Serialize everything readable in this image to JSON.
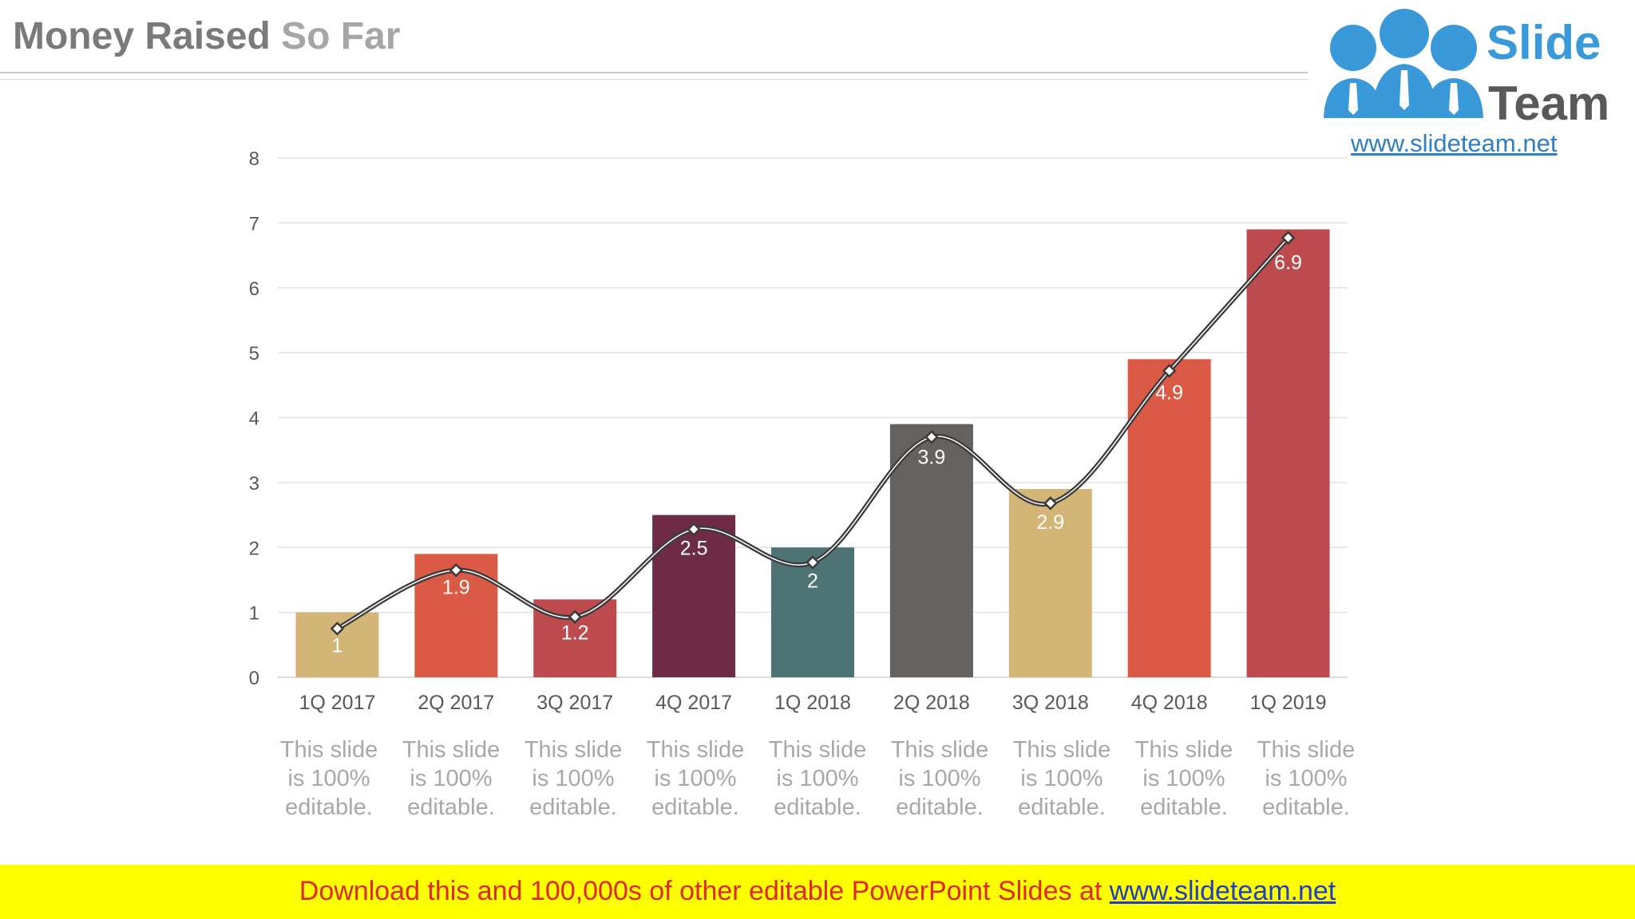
{
  "header": {
    "title_main": "Money Raised",
    "title_accent": "So Far"
  },
  "logo": {
    "word1": "Slide",
    "word2": "Team",
    "url": "www.slideteam.net"
  },
  "chart_data": {
    "type": "bar",
    "categories": [
      "1Q 2017",
      "2Q 2017",
      "3Q 2017",
      "4Q 2017",
      "1Q 2018",
      "2Q 2018",
      "3Q 2018",
      "4Q 2018",
      "1Q 2019"
    ],
    "values": [
      1,
      1.9,
      1.2,
      2.5,
      2,
      3.9,
      2.9,
      4.9,
      6.9
    ],
    "data_labels": [
      "1",
      "1.9",
      "1.2",
      "2.5",
      "2",
      "3.9",
      "2.9",
      "4.9",
      "6.9"
    ],
    "bar_colors": [
      "#d4b578",
      "#da5a45",
      "#bd4a4d",
      "#6d2b45",
      "#4e7374",
      "#65615f",
      "#d4b578",
      "#da5a45",
      "#bd4a4d"
    ],
    "line_series": {
      "type": "smooth-line",
      "values": [
        0.75,
        1.65,
        0.93,
        2.28,
        1.77,
        3.7,
        2.68,
        4.72,
        6.77
      ],
      "color": "#3a3a3a",
      "marker": "diamond"
    },
    "ylim": [
      0,
      8
    ],
    "yticks": [
      0,
      1,
      2,
      3,
      4,
      5,
      6,
      7,
      8
    ],
    "grid": true,
    "xlabel": "",
    "ylabel": ""
  },
  "notes": [
    "This slide is 100% editable.",
    "This slide is 100% editable.",
    "This slide is 100% editable.",
    "This slide is 100% editable.",
    "This slide is 100% editable.",
    "This slide is 100% editable.",
    "This slide is 100% editable.",
    "This slide is 100% editable.",
    "This slide is 100% editable."
  ],
  "footer": {
    "text": "Download this and 100,000s of other editable PowerPoint Slides at ",
    "link": "www.slideteam.net"
  }
}
